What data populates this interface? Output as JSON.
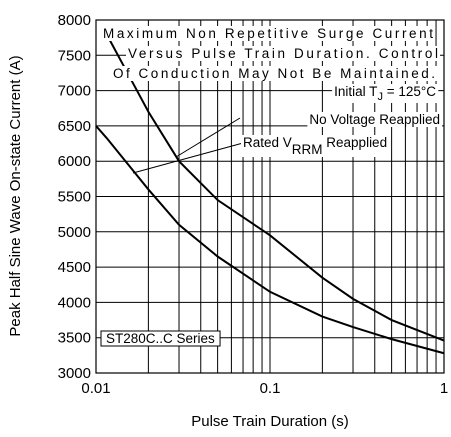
{
  "chart_data": {
    "type": "line",
    "xlabel": "Pulse Train Duration (s)",
    "ylabel": "Peak Half Sine Wave On-state Current (A)",
    "xscale": "log",
    "x": [
      0.01,
      0.0115,
      0.02,
      0.03,
      0.05,
      0.1,
      0.2,
      0.3,
      0.5,
      1
    ],
    "series": [
      {
        "name": "No Voltage Reapplied",
        "color": "#000000",
        "values": [
          null,
          7800,
          6700,
          6000,
          5450,
          4950,
          4350,
          4050,
          3750,
          3460
        ]
      },
      {
        "name": "Rated V RRM Reapplied",
        "color": "#000000",
        "values": [
          6500,
          6330,
          5600,
          5100,
          4650,
          4150,
          3800,
          3650,
          3480,
          3280
        ]
      }
    ],
    "xlim": [
      0.01,
      1
    ],
    "xticks": [
      0.01,
      0.1,
      1
    ],
    "x_minor_ticks": [
      0.02,
      0.03,
      0.04,
      0.05,
      0.06,
      0.07,
      0.08,
      0.09,
      0.2,
      0.3,
      0.4,
      0.5,
      0.6,
      0.7,
      0.8,
      0.9
    ],
    "ylim": [
      3000,
      8000
    ],
    "yticks": [
      3000,
      3500,
      4000,
      4500,
      5000,
      5500,
      6000,
      6500,
      7000,
      7500,
      8000
    ],
    "grid": true,
    "annotations": {
      "line1": "Maximum Non Repetitive Surge Current",
      "line2": "Versus Pulse Train Duration. Control",
      "line3": "Of Conduction May Not Be Maintained.",
      "tj": [
        "Initial T",
        "J",
        " = 125°C"
      ],
      "upper": "No Voltage Reapplied",
      "lower": [
        "Rated V",
        "RRM",
        " Reapplied"
      ],
      "series_name": "ST280C..C Series"
    }
  }
}
